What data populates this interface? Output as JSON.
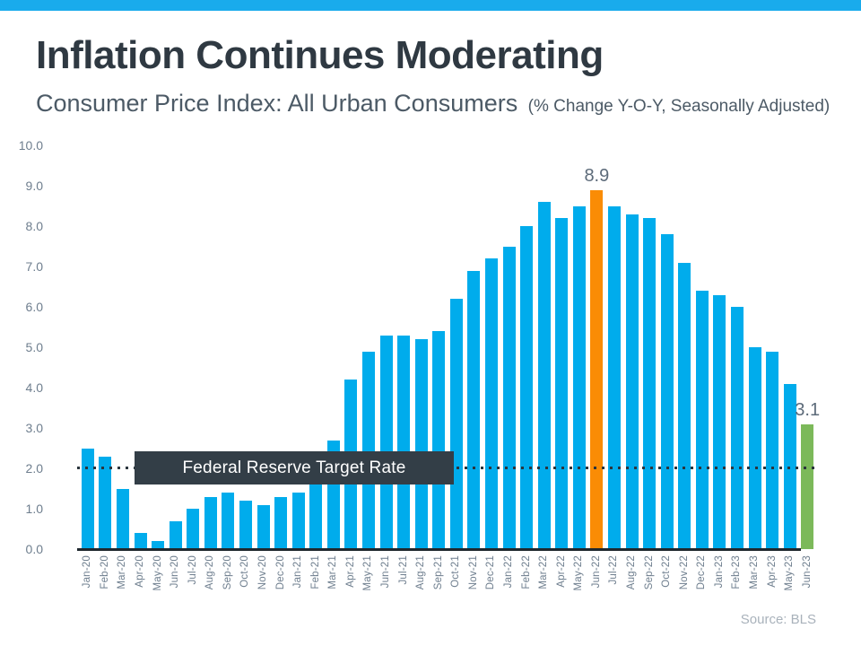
{
  "header": {
    "title": "Inflation Continues Moderating",
    "subtitle": "Consumer Price Index: All Urban Consumers",
    "subtitle_note": "(% Change Y-O-Y, Seasonally Adjusted)"
  },
  "overlay": {
    "fed_target_label": "Federal Reserve Target Rate"
  },
  "footer": {
    "source": "Source: BLS"
  },
  "colors": {
    "accent_strip": "#19ABEC",
    "bar_blue": "#00ACEC",
    "highlight_orange": "#FA8C05",
    "highlight_green": "#7CB95A",
    "target_box_bg": "#333E47",
    "dotted_line": "#2B353D",
    "axis_line": "#1F282E",
    "title_text": "#2F3942",
    "subtitle_text": "#4C5A66",
    "tick_label": "#6E7E8E",
    "value_label": "#5D6B7A",
    "source_text": "#A9B2BB"
  },
  "chart_data": {
    "type": "bar",
    "title": "Inflation Continues Moderating",
    "subtitle": "Consumer Price Index: All Urban Consumers (% Change Y-O-Y, Seasonally Adjusted)",
    "xlabel": "",
    "ylabel": "",
    "ylim": [
      0,
      10
    ],
    "ytick_step": 1.0,
    "ytick_labels": [
      "0.0",
      "1.0",
      "2.0",
      "3.0",
      "4.0",
      "5.0",
      "6.0",
      "7.0",
      "8.0",
      "9.0",
      "10.0"
    ],
    "grid": false,
    "legend": "none",
    "categories": [
      "Jan-20",
      "Feb-20",
      "Mar-20",
      "Apr-20",
      "May-20",
      "Jun-20",
      "Jul-20",
      "Aug-20",
      "Sep-20",
      "Oct-20",
      "Nov-20",
      "Dec-20",
      "Jan-21",
      "Feb-21",
      "Mar-21",
      "Apr-21",
      "May-21",
      "Jun-21",
      "Jul-21",
      "Aug-21",
      "Sep-21",
      "Oct-21",
      "Nov-21",
      "Dec-21",
      "Jan-22",
      "Feb-22",
      "Mar-22",
      "Apr-22",
      "May-22",
      "Jun-22",
      "Jul-22",
      "Aug-22",
      "Sep-22",
      "Oct-22",
      "Nov-22",
      "Dec-22",
      "Jan-23",
      "Feb-23",
      "Mar-23",
      "Apr-23",
      "May-23",
      "Jun-23"
    ],
    "values": [
      2.5,
      2.3,
      1.5,
      0.4,
      0.2,
      0.7,
      1.0,
      1.3,
      1.4,
      1.2,
      1.1,
      1.3,
      1.4,
      1.7,
      2.7,
      4.2,
      4.9,
      5.3,
      5.3,
      5.2,
      5.4,
      6.2,
      6.9,
      7.2,
      7.5,
      8.0,
      8.6,
      8.2,
      8.5,
      8.9,
      8.5,
      8.3,
      8.2,
      7.8,
      7.1,
      6.4,
      6.3,
      6.0,
      5.0,
      4.9,
      4.1,
      3.1
    ],
    "annotated_bars": [
      {
        "index": 29,
        "category": "Jun-22",
        "label": "8.9",
        "color": "#FA8C05"
      },
      {
        "index": 41,
        "category": "Jun-23",
        "label": "3.1",
        "color": "#7CB95A"
      }
    ],
    "reference_line": {
      "value": 2.0,
      "label": "Federal Reserve Target Rate",
      "style": "dotted"
    }
  }
}
